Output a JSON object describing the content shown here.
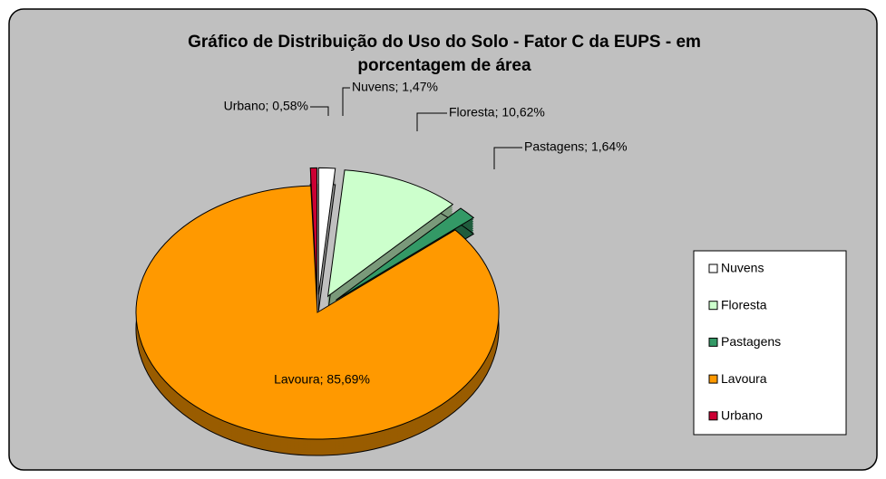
{
  "chart_data": {
    "type": "pie",
    "title": "Gráfico de Distribuição do Uso do Solo - Fator C da EUPS - em porcentagem de área",
    "categories": [
      "Nuvens",
      "Floresta",
      "Pastagens",
      "Lavoura",
      "Urbano"
    ],
    "values": [
      1.47,
      10.62,
      1.64,
      85.69,
      0.58
    ],
    "value_labels": [
      "Nuvens; 1,47%",
      "Floresta; 10,62%",
      "Pastagens; 1,64%",
      "Lavoura; 85,69%",
      "Urbano; 0,58%"
    ],
    "colors": [
      "#ffffff",
      "#ccffcc",
      "#339966",
      "#ff9900",
      "#cc0033"
    ],
    "legend": true,
    "legend_position": "right",
    "three_d": true,
    "exploded": true
  }
}
